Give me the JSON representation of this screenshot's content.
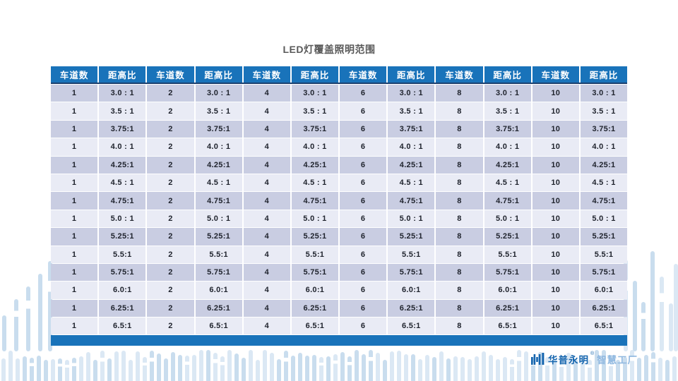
{
  "slide": {
    "title": "LED灯覆盖照明范围"
  },
  "table": {
    "column_headers": [
      "车道数",
      "距高比",
      "车道数",
      "距高比",
      "车道数",
      "距高比",
      "车道数",
      "距高比",
      "车道数",
      "距高比",
      "车道数",
      "距高比"
    ],
    "lane_counts": [
      "1",
      "2",
      "4",
      "6",
      "8",
      "10"
    ],
    "ratio_rows": [
      "3.0 : 1",
      "3.5 : 1",
      "3.75:1",
      "4.0 : 1",
      "4.25:1",
      "4.5 : 1",
      "4.75:1",
      "5.0 : 1",
      "5.25:1",
      "5.5:1",
      "5.75:1",
      "6.0:1",
      "6.25:1",
      "6.5:1"
    ]
  },
  "footer": {
    "logo_icon": "factory-bars-icon",
    "brand_name": "华普永明",
    "reg_mark": "®",
    "brand_suffix": "智慧工厂"
  },
  "colors": {
    "header_bg": "#1973ba",
    "header_text": "#ffffff",
    "header_underline": "#1c406f",
    "row_dark": "#c9cde2",
    "row_light": "#e9ebf5",
    "cell_text": "#20242e",
    "footer_bar": "#1973ba",
    "title_text": "#595959",
    "brand_primary": "#1565ae",
    "brand_secondary": "#8fb8e0",
    "deco_bar_light": "#dbe8f4",
    "deco_bar_dark": "#c9ddee"
  }
}
